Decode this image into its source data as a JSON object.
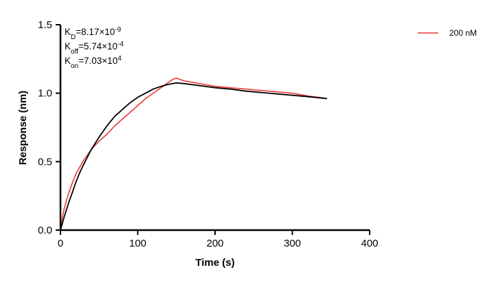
{
  "chart_data": {
    "type": "line",
    "xlabel": "Time (s)",
    "ylabel": "Response (nm)",
    "xlim": [
      0,
      400
    ],
    "ylim": [
      0,
      1.5
    ],
    "x_ticks": [
      "0",
      "100",
      "200",
      "300",
      "400"
    ],
    "y_ticks": [
      "0.0",
      "0.5",
      "1.0",
      "1.5"
    ],
    "grid": false,
    "legend_position": "top-right",
    "kinetics": [
      {
        "symbol": "K",
        "sub": "D",
        "value": "=8.17×10",
        "exp": "-9"
      },
      {
        "symbol": "K",
        "sub": "off",
        "value": "=5.74×10",
        "exp": "-4"
      },
      {
        "symbol": "K",
        "sub": "on",
        "value": "=7.03×10",
        "exp": "4"
      }
    ],
    "series": [
      {
        "name": "200 nM",
        "color": "#e8393b",
        "role": "measured",
        "x": [
          0,
          2,
          5,
          10,
          15,
          20,
          25,
          30,
          40,
          50,
          60,
          70,
          80,
          90,
          100,
          110,
          120,
          130,
          140,
          145,
          150,
          155,
          160,
          180,
          200,
          220,
          240,
          260,
          280,
          300,
          320,
          340,
          345
        ],
        "y": [
          0.0,
          0.08,
          0.16,
          0.26,
          0.34,
          0.41,
          0.46,
          0.51,
          0.59,
          0.65,
          0.7,
          0.76,
          0.81,
          0.86,
          0.91,
          0.96,
          1.0,
          1.04,
          1.08,
          1.1,
          1.11,
          1.1,
          1.09,
          1.07,
          1.05,
          1.04,
          1.03,
          1.02,
          1.01,
          1.0,
          0.98,
          0.965,
          0.96
        ]
      },
      {
        "role": "fit",
        "color": "#000000",
        "x": [
          0,
          5,
          10,
          15,
          20,
          25,
          30,
          40,
          50,
          60,
          70,
          80,
          90,
          100,
          110,
          120,
          130,
          140,
          150,
          160,
          180,
          200,
          220,
          240,
          260,
          280,
          300,
          320,
          345
        ],
        "y": [
          0.0,
          0.1,
          0.19,
          0.27,
          0.35,
          0.42,
          0.48,
          0.59,
          0.68,
          0.76,
          0.83,
          0.88,
          0.93,
          0.97,
          1.0,
          1.03,
          1.05,
          1.065,
          1.075,
          1.07,
          1.055,
          1.04,
          1.03,
          1.015,
          1.005,
          0.995,
          0.985,
          0.975,
          0.96
        ]
      }
    ]
  }
}
